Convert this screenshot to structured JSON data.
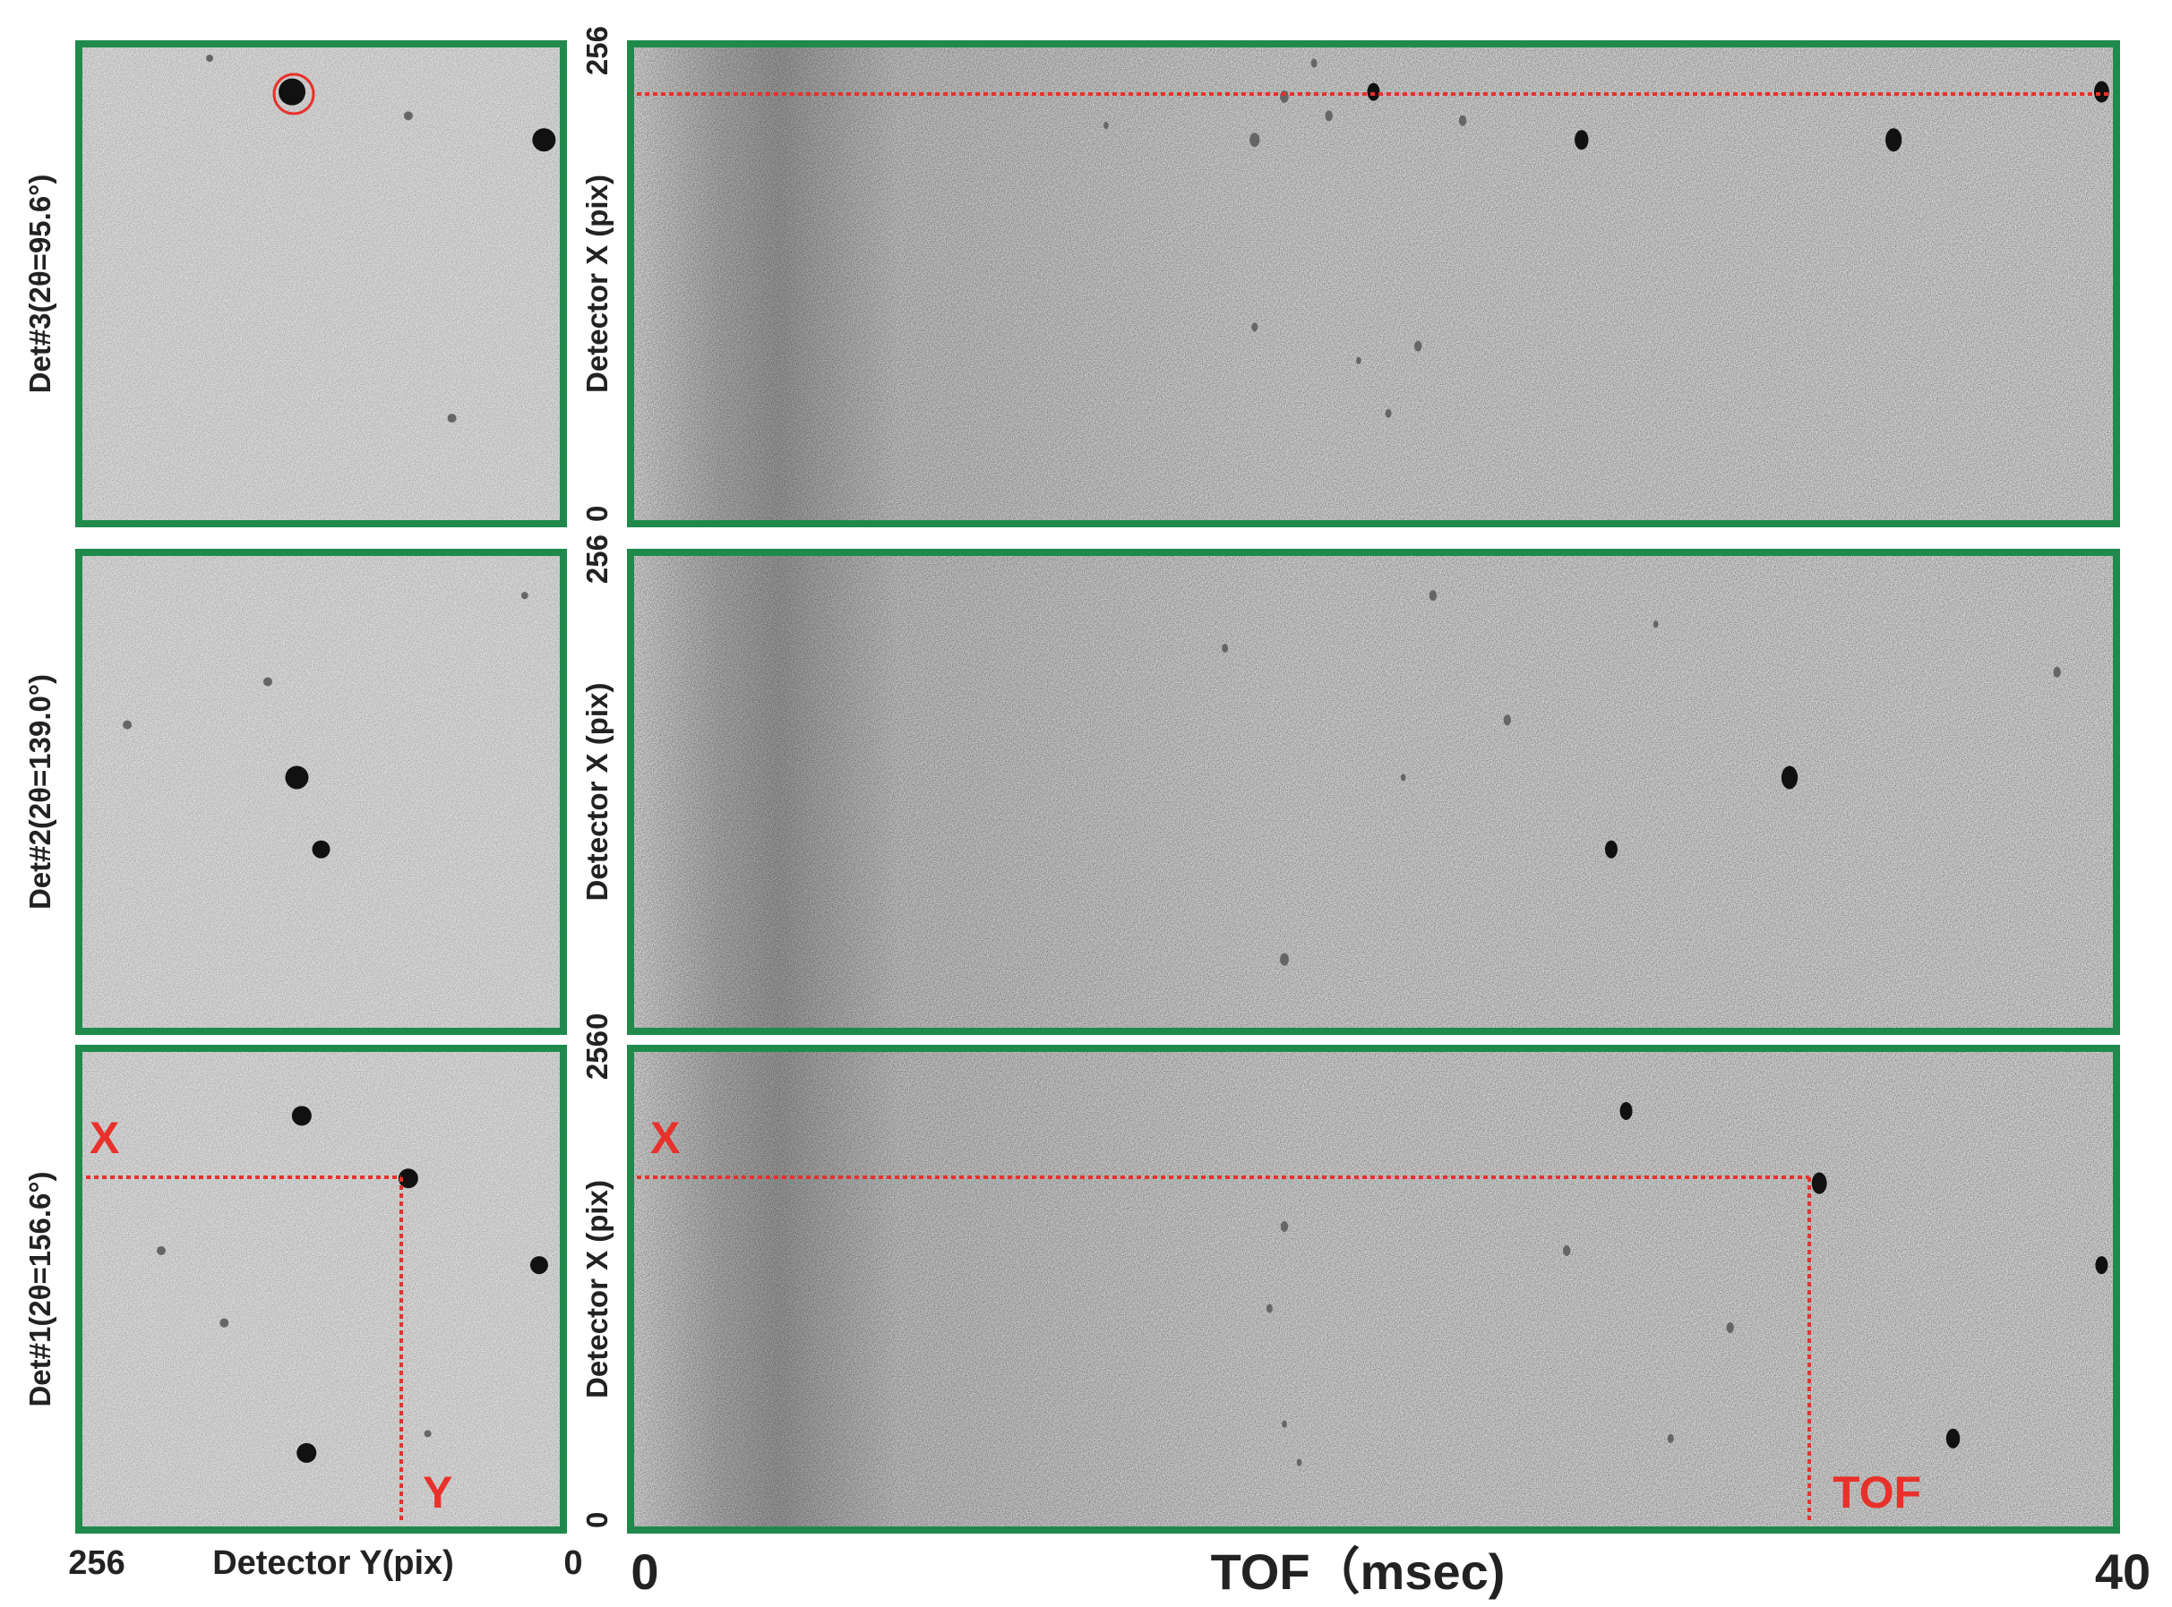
{
  "rows": [
    {
      "label": "Det#3(2θ=95.6°)",
      "axis_label": "Detector X (pix)",
      "axis_max": "256",
      "axis_min": "0"
    },
    {
      "label": "Det#2(2θ=139.0°)",
      "axis_label": "Detector X (pix)",
      "axis_max": "256",
      "axis_min": "0"
    },
    {
      "label": "Det#1(2θ=156.6°)",
      "axis_label": "Detector X (pix)",
      "axis_max": "256",
      "axis_min": "0"
    }
  ],
  "annotations": {
    "det1_x": "X",
    "det1_y": "Y",
    "tof_x": "X",
    "tof_label": "TOF"
  },
  "footer": {
    "y_max": "256",
    "y_label": "Detector Y(pix)",
    "y_min": "0",
    "tof_min": "0",
    "tof_label": "TOF（msec)",
    "tof_max": "40"
  }
}
